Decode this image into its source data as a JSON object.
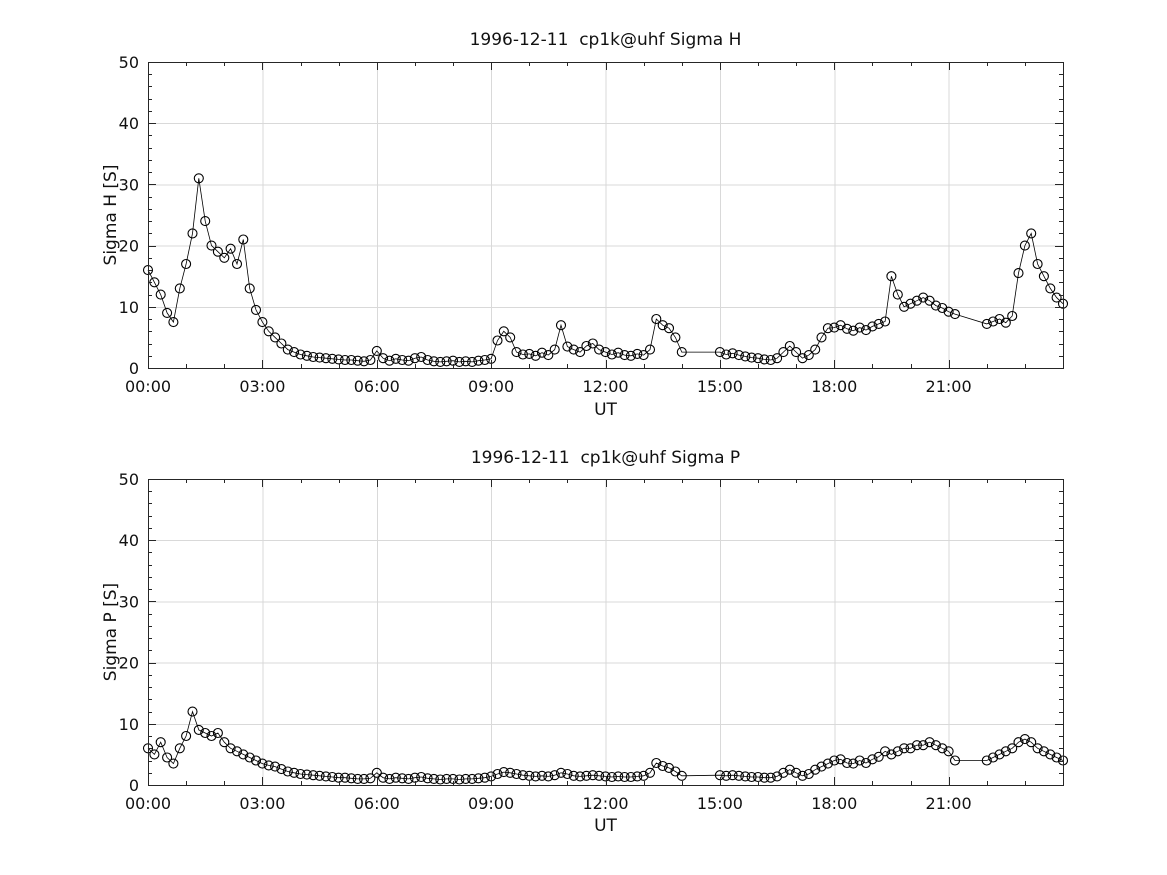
{
  "figure": {
    "background": "#ffffff",
    "axis_color": "#262626",
    "grid_color": "#d9d9d9",
    "data_color": "#000000",
    "marker": "open-circle"
  },
  "chart_data": [
    {
      "type": "scatter",
      "title": "1996-12-11  cp1k@uhf Sigma H",
      "xlabel": "UT",
      "ylabel": "Sigma H [S]",
      "ylim": [
        0,
        50
      ],
      "yticks": [
        0,
        10,
        20,
        30,
        40,
        50
      ],
      "y_minor_step": 2,
      "xlim_minutes": [
        0,
        1440
      ],
      "xtick_minutes": [
        0,
        180,
        360,
        540,
        720,
        900,
        1080,
        1260
      ],
      "xtick_labels": [
        "00:00",
        "03:00",
        "06:00",
        "09:00",
        "12:00",
        "15:00",
        "18:00",
        "21:00"
      ],
      "x_minor_step_minutes": 60,
      "grid": true,
      "legend": null,
      "x_minutes": [
        0,
        10,
        20,
        30,
        40,
        50,
        60,
        70,
        80,
        90,
        100,
        110,
        120,
        130,
        140,
        150,
        160,
        170,
        180,
        190,
        200,
        210,
        220,
        230,
        240,
        250,
        260,
        270,
        280,
        290,
        300,
        310,
        320,
        330,
        340,
        350,
        360,
        370,
        380,
        390,
        400,
        410,
        420,
        430,
        440,
        450,
        460,
        470,
        480,
        490,
        500,
        510,
        520,
        530,
        540,
        550,
        560,
        570,
        580,
        590,
        600,
        610,
        620,
        630,
        640,
        650,
        660,
        670,
        680,
        690,
        700,
        710,
        720,
        730,
        740,
        750,
        760,
        770,
        780,
        790,
        800,
        810,
        820,
        830,
        840,
        900,
        910,
        920,
        930,
        940,
        950,
        960,
        970,
        980,
        990,
        1000,
        1010,
        1020,
        1030,
        1040,
        1050,
        1060,
        1070,
        1080,
        1090,
        1100,
        1110,
        1120,
        1130,
        1140,
        1150,
        1160,
        1170,
        1180,
        1190,
        1200,
        1210,
        1220,
        1230,
        1240,
        1250,
        1260,
        1270,
        1320,
        1330,
        1340,
        1350,
        1360,
        1370,
        1380,
        1390,
        1400,
        1410,
        1420,
        1430,
        1440
      ],
      "values": [
        16,
        14,
        12,
        9,
        7.5,
        13,
        17,
        22,
        31,
        24,
        20,
        19,
        18,
        19.5,
        17,
        21,
        13,
        9.5,
        7.5,
        6,
        5,
        4,
        3,
        2.6,
        2.2,
        2.0,
        1.8,
        1.7,
        1.6,
        1.5,
        1.4,
        1.3,
        1.3,
        1.2,
        1.1,
        1.3,
        2.8,
        1.6,
        1.2,
        1.5,
        1.3,
        1.2,
        1.6,
        1.8,
        1.3,
        1.1,
        1.0,
        1.1,
        1.2,
        1.0,
        1.1,
        1.0,
        1.2,
        1.3,
        1.5,
        4.5,
        6,
        5,
        2.6,
        2.2,
        2.3,
        2.0,
        2.5,
        2.1,
        3,
        7,
        3.5,
        3,
        2.6,
        3.6,
        4,
        3,
        2.6,
        2.2,
        2.5,
        2.1,
        2.0,
        2.3,
        2.1,
        3,
        8,
        7,
        6.5,
        5,
        2.6,
        2.6,
        2.2,
        2.4,
        2.1,
        1.9,
        1.7,
        1.6,
        1.4,
        1.3,
        1.6,
        2.6,
        3.6,
        2.6,
        1.6,
        2.1,
        3,
        5,
        6.5,
        6.6,
        7,
        6.4,
        6.1,
        6.6,
        6.2,
        6.8,
        7.2,
        7.6,
        15,
        12,
        10,
        10.5,
        11,
        11.5,
        11,
        10.2,
        9.8,
        9.2,
        8.8,
        7.2,
        7.6,
        8,
        7.4,
        8.5,
        15.5,
        20,
        22,
        17,
        15,
        13,
        11.5,
        10.5
      ]
    },
    {
      "type": "scatter",
      "title": "1996-12-11  cp1k@uhf Sigma P",
      "xlabel": "UT",
      "ylabel": "Sigma P [S]",
      "ylim": [
        0,
        50
      ],
      "yticks": [
        0,
        10,
        20,
        30,
        40,
        50
      ],
      "y_minor_step": 2,
      "xlim_minutes": [
        0,
        1440
      ],
      "xtick_minutes": [
        0,
        180,
        360,
        540,
        720,
        900,
        1080,
        1260
      ],
      "xtick_labels": [
        "00:00",
        "03:00",
        "06:00",
        "09:00",
        "12:00",
        "15:00",
        "18:00",
        "21:00"
      ],
      "x_minor_step_minutes": 60,
      "grid": true,
      "legend": null,
      "x_minutes": [
        0,
        10,
        20,
        30,
        40,
        50,
        60,
        70,
        80,
        90,
        100,
        110,
        120,
        130,
        140,
        150,
        160,
        170,
        180,
        190,
        200,
        210,
        220,
        230,
        240,
        250,
        260,
        270,
        280,
        290,
        300,
        310,
        320,
        330,
        340,
        350,
        360,
        370,
        380,
        390,
        400,
        410,
        420,
        430,
        440,
        450,
        460,
        470,
        480,
        490,
        500,
        510,
        520,
        530,
        540,
        550,
        560,
        570,
        580,
        590,
        600,
        610,
        620,
        630,
        640,
        650,
        660,
        670,
        680,
        690,
        700,
        710,
        720,
        730,
        740,
        750,
        760,
        770,
        780,
        790,
        800,
        810,
        820,
        830,
        840,
        900,
        910,
        920,
        930,
        940,
        950,
        960,
        970,
        980,
        990,
        1000,
        1010,
        1020,
        1030,
        1040,
        1050,
        1060,
        1070,
        1080,
        1090,
        1100,
        1110,
        1120,
        1130,
        1140,
        1150,
        1160,
        1170,
        1180,
        1190,
        1200,
        1210,
        1220,
        1230,
        1240,
        1250,
        1260,
        1270,
        1320,
        1330,
        1340,
        1350,
        1360,
        1370,
        1380,
        1390,
        1400,
        1410,
        1420,
        1430,
        1440
      ],
      "values": [
        6,
        5,
        7,
        4.5,
        3.5,
        6,
        8,
        12,
        9,
        8.5,
        8,
        8.5,
        7,
        6,
        5.5,
        5,
        4.5,
        4,
        3.5,
        3.2,
        3,
        2.6,
        2.2,
        2.0,
        1.8,
        1.7,
        1.6,
        1.5,
        1.4,
        1.3,
        1.2,
        1.2,
        1.1,
        1.0,
        1.0,
        1.1,
        2.0,
        1.2,
        1.0,
        1.2,
        1.1,
        1.0,
        1.2,
        1.3,
        1.1,
        1.0,
        0.9,
        1.0,
        1.0,
        0.9,
        1.0,
        1.0,
        1.1,
        1.2,
        1.4,
        1.8,
        2.1,
        2.0,
        1.8,
        1.6,
        1.5,
        1.4,
        1.5,
        1.4,
        1.6,
        2.0,
        1.8,
        1.5,
        1.4,
        1.5,
        1.6,
        1.5,
        1.4,
        1.3,
        1.4,
        1.3,
        1.3,
        1.4,
        1.5,
        2.0,
        3.6,
        3.1,
        2.8,
        2.2,
        1.5,
        1.6,
        1.5,
        1.6,
        1.5,
        1.4,
        1.3,
        1.3,
        1.2,
        1.2,
        1.4,
        2.0,
        2.5,
        2.0,
        1.5,
        1.8,
        2.5,
        3.0,
        3.5,
        4.0,
        4.2,
        3.6,
        3.5,
        4.0,
        3.6,
        4.2,
        4.6,
        5.5,
        5.0,
        5.5,
        6.0,
        6.0,
        6.5,
        6.5,
        7.0,
        6.5,
        6.0,
        5.5,
        4.0,
        4.0,
        4.5,
        5.0,
        5.5,
        6.0,
        7.0,
        7.5,
        7.0,
        6.0,
        5.5,
        5.0,
        4.5,
        4.0
      ]
    }
  ]
}
